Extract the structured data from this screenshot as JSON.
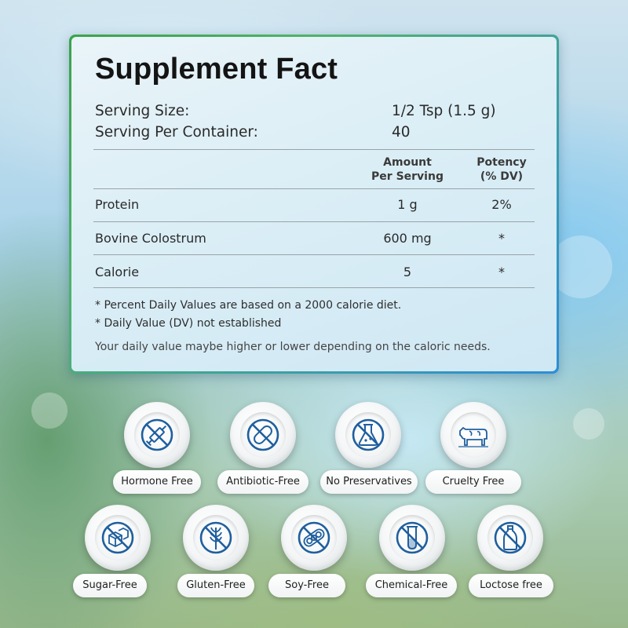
{
  "panel": {
    "title": "Supplement Fact",
    "serving_size_label": "Serving Size:",
    "serving_size_value": "1/2 Tsp (1.5 g)",
    "servings_label": "Serving Per Container:",
    "servings_value": "40",
    "col_amount_line1": "Amount",
    "col_amount_line2": "Per Serving",
    "col_potency_line1": "Potency",
    "col_potency_line2": "(% DV)",
    "rows": [
      {
        "name": "Protein",
        "amount": "1 g",
        "potency": "2%"
      },
      {
        "name": "Bovine Colostrum",
        "amount": "600 mg",
        "potency": "*"
      },
      {
        "name": "Calorie",
        "amount": "5",
        "potency": "*"
      }
    ],
    "notes": [
      "* Percent Daily Values are based on a 2000 calorie diet.",
      "* Daily Value (DV) not established"
    ],
    "disclaimer": "Your daily value maybe higher or lower depending on the caloric needs."
  },
  "badges": [
    {
      "label": "Hormone Free",
      "icon": "syringe-crossed-icon"
    },
    {
      "label": "Antibiotic-Free",
      "icon": "pill-crossed-icon"
    },
    {
      "label": "No Preservatives",
      "icon": "flask-crossed-icon"
    },
    {
      "label": "Cruelty Free",
      "icon": "cow-icon"
    },
    {
      "label": "Sugar-Free",
      "icon": "sugar-cube-crossed-icon"
    },
    {
      "label": "Gluten-Free",
      "icon": "wheat-crossed-icon"
    },
    {
      "label": "Soy-Free",
      "icon": "soybean-crossed-icon"
    },
    {
      "label": "Chemical-Free",
      "icon": "test-tube-crossed-icon"
    },
    {
      "label": "Loctose free",
      "icon": "milk-bottle-crossed-icon"
    }
  ],
  "colors": {
    "icon_blue": "#1f5f9e",
    "panel_border_green": "#3aa34a",
    "panel_border_blue": "#2c8ed8"
  }
}
